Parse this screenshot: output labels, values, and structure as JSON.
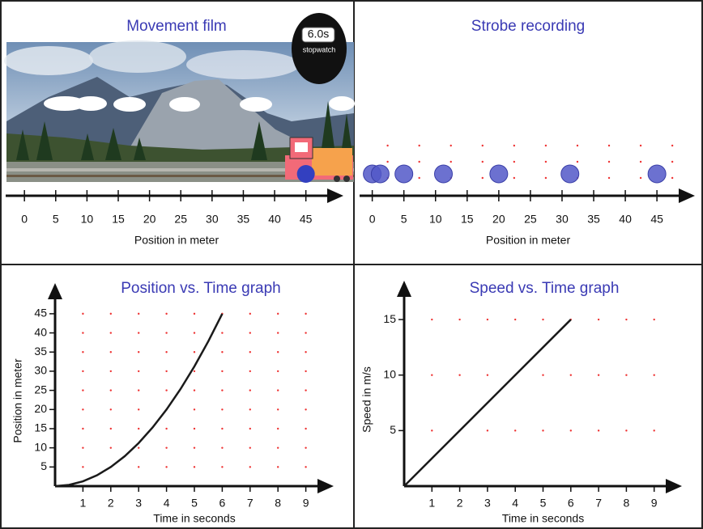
{
  "chart_data": [
    {
      "type": "film",
      "title": "Movement film",
      "stopwatch_time": "6.0s",
      "stopwatch_label": "stopwatch",
      "xlabel": "Position in meter",
      "xlim": [
        -3,
        51
      ],
      "xticks": [
        0,
        5,
        10,
        15,
        20,
        25,
        30,
        35,
        40,
        45
      ],
      "values": [
        45
      ],
      "color": "#3340c0"
    },
    {
      "type": "strobe",
      "title": "Strobe recording",
      "xlabel": "Position in meter",
      "xlim": [
        -2,
        51
      ],
      "xticks": [
        0,
        5,
        10,
        15,
        20,
        25,
        30,
        35,
        40,
        45
      ],
      "x": [
        0,
        1.25,
        5,
        11.25,
        20,
        31.25,
        45
      ],
      "color": "#5258c8",
      "grid": true
    },
    {
      "type": "line",
      "title": "Position vs. Time graph",
      "xlabel": "Time in seconds",
      "ylabel": "Position in meter",
      "x": [
        0,
        0.5,
        1,
        1.5,
        2,
        2.5,
        3,
        3.5,
        4,
        4.5,
        5,
        5.5,
        6
      ],
      "values": [
        0,
        0.3125,
        1.25,
        2.8125,
        5,
        7.8125,
        11.25,
        15.3125,
        20,
        25.3125,
        31.25,
        37.8125,
        45
      ],
      "xlim": [
        0,
        10
      ],
      "ylim": [
        0,
        53
      ],
      "xticks": [
        1,
        2,
        3,
        4,
        5,
        6,
        7,
        8,
        9
      ],
      "yticks": [
        5,
        10,
        15,
        20,
        25,
        30,
        35,
        40,
        45
      ],
      "grid": true,
      "color": "#1a1a1a"
    },
    {
      "type": "line",
      "title": "Speed vs. Time graph",
      "xlabel": "Time in seconds",
      "ylabel": "Speed in m/s",
      "x": [
        0,
        6
      ],
      "values": [
        0,
        15
      ],
      "xlim": [
        0,
        10
      ],
      "ylim": [
        0,
        18.5
      ],
      "xticks": [
        1,
        2,
        3,
        4,
        5,
        6,
        7,
        8,
        9
      ],
      "yticks": [
        5,
        10,
        15
      ],
      "grid": true,
      "color": "#1a1a1a"
    }
  ]
}
